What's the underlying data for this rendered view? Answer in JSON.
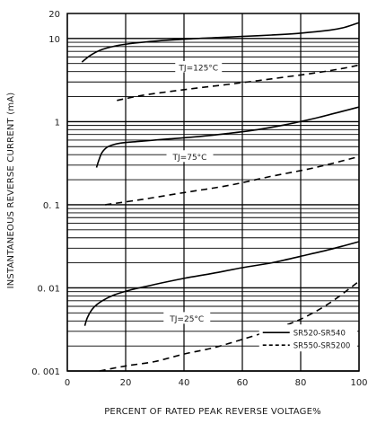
{
  "chart_data": {
    "type": "line",
    "xlabel": "PERCENT OF RATED PEAK REVERSE VOLTAGE%",
    "ylabel": "INSTANTANEOUS REVERSE CURRENT (mA)",
    "xlim": [
      0,
      100
    ],
    "ylim": [
      0.001,
      20
    ],
    "yscale": "log",
    "grid": true,
    "legend_position": "bottom-right",
    "x_ticks": [
      "0",
      "20",
      "40",
      "60",
      "80",
      "100"
    ],
    "y_ticks": [
      {
        "value": 0.001,
        "label": "0. 001"
      },
      {
        "value": 0.01,
        "label": "0. 01"
      },
      {
        "value": 0.1,
        "label": "0. 1"
      },
      {
        "value": 1,
        "label": "1"
      },
      {
        "value": 10,
        "label": "10"
      },
      {
        "value": 20,
        "label": "20"
      }
    ],
    "annotations": [
      {
        "text": "TJ=125°C",
        "x": 45,
        "y": 4.5
      },
      {
        "text": "TJ=75°C",
        "x": 42,
        "y": 0.38
      },
      {
        "text": "TJ=25°C",
        "x": 41,
        "y": 0.0043
      }
    ],
    "legend": [
      {
        "label": "SR520-SR540",
        "style": "solid"
      },
      {
        "label": "SR550-SR5200",
        "style": "dashed"
      }
    ],
    "series": [
      {
        "legend": "SR520-SR540",
        "condition": "TJ=125°C",
        "style": "solid",
        "x": [
          5,
          8,
          12,
          17,
          23,
          30,
          40,
          50,
          60,
          70,
          80,
          90,
          95,
          100
        ],
        "y": [
          5.2,
          6.3,
          7.4,
          8.2,
          8.8,
          9.3,
          9.8,
          10.2,
          10.6,
          11.0,
          11.6,
          12.6,
          13.6,
          15.5
        ]
      },
      {
        "legend": "SR550-SR5200",
        "condition": "TJ=125°C",
        "style": "dashed",
        "x": [
          17,
          25,
          35,
          45,
          55,
          65,
          75,
          85,
          95,
          100
        ],
        "y": [
          1.8,
          2.05,
          2.3,
          2.55,
          2.8,
          3.1,
          3.45,
          3.85,
          4.4,
          4.8
        ]
      },
      {
        "legend": "SR520-SR540",
        "condition": "TJ=75°C",
        "style": "solid",
        "x": [
          10,
          11,
          12,
          14,
          18,
          25,
          35,
          45,
          55,
          65,
          75,
          85,
          95,
          100
        ],
        "y": [
          0.28,
          0.36,
          0.43,
          0.5,
          0.55,
          0.58,
          0.62,
          0.66,
          0.72,
          0.8,
          0.92,
          1.1,
          1.35,
          1.5
        ]
      },
      {
        "legend": "SR550-SR5200",
        "condition": "TJ=75°C",
        "style": "dashed",
        "x": [
          13,
          25,
          40,
          55,
          70,
          85,
          100
        ],
        "y": [
          0.1,
          0.115,
          0.14,
          0.17,
          0.22,
          0.28,
          0.38
        ]
      },
      {
        "legend": "SR520-SR540",
        "condition": "TJ=25°C",
        "style": "solid",
        "x": [
          6,
          7,
          9,
          12,
          16,
          22,
          30,
          40,
          50,
          60,
          70,
          80,
          90,
          100
        ],
        "y": [
          0.0035,
          0.0045,
          0.0058,
          0.007,
          0.0082,
          0.0095,
          0.011,
          0.013,
          0.015,
          0.0175,
          0.02,
          0.024,
          0.029,
          0.036
        ]
      },
      {
        "legend": "SR550-SR5200",
        "condition": "TJ=25°C",
        "style": "dashed",
        "x": [
          11,
          20,
          30,
          40,
          50,
          60,
          70,
          80,
          90,
          100
        ],
        "y": [
          0.001,
          0.00115,
          0.0013,
          0.0016,
          0.0019,
          0.0024,
          0.0031,
          0.0042,
          0.0066,
          0.012
        ]
      }
    ]
  }
}
